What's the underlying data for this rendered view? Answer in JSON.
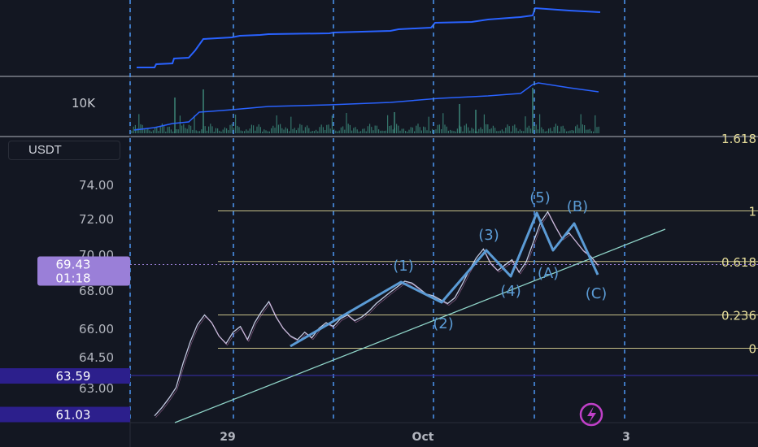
{
  "unit_label": "USDT",
  "volume_label": "10K",
  "price_tag": {
    "price": "69.43",
    "countdown": "01:18",
    "color": "#9a7fd8"
  },
  "level_tags": [
    {
      "price": "63.59",
      "color": "#2c1f8c"
    },
    {
      "price": "61.03",
      "color": "#2c1f8c"
    }
  ],
  "chart_data": {
    "type": "line",
    "title": "",
    "ylim": [
      60.4,
      75.2
    ],
    "y_ticks": [
      "74.00",
      "72.00",
      "70.00",
      "68.00",
      "66.00",
      "64.50",
      "63.00",
      "61.00"
    ],
    "x_ticks": [
      "29",
      "Oct",
      "3"
    ],
    "fib_levels": [
      {
        "label": "1.618",
        "value": 76.1
      },
      {
        "label": "1",
        "value": 72.45
      },
      {
        "label": "0.618",
        "value": 69.6
      },
      {
        "label": "0.236",
        "value": 66.7
      },
      {
        "label": "0",
        "value": 64.95
      }
    ],
    "wave_labels": [
      "(1)",
      "(2)",
      "(3)",
      "(4)",
      "(5)",
      "(A)",
      "(B)",
      "(C)"
    ],
    "price_series": {
      "name": "",
      "values": [
        60.9,
        61.5,
        62.2,
        63.0,
        64.2,
        65.3,
        66.2,
        66.7,
        66.3,
        65.6,
        65.2,
        65.8,
        66.1,
        65.4,
        66.3,
        66.9,
        67.4,
        66.6,
        66.0,
        65.6,
        65.4,
        65.8,
        65.5,
        66.0,
        66.3,
        66.1,
        66.5,
        66.7,
        66.4,
        66.6,
        66.9,
        67.3,
        67.6,
        67.9,
        68.2,
        68.5,
        68.4,
        68.1,
        67.8,
        67.7,
        67.5,
        67.3,
        67.6,
        68.3,
        69.1,
        69.8,
        70.3,
        69.5,
        69.1,
        69.4,
        69.7,
        69.0,
        69.6,
        70.7,
        71.8,
        72.4,
        71.6,
        70.9,
        71.2,
        70.7,
        70.2,
        69.9,
        69.4
      ]
    },
    "colors": {
      "price": "#d6dcf5",
      "wave": "#5b9bd5",
      "trendline": "#8fd4c8",
      "fib": "#e6dd9a",
      "indicator": "#2962ff"
    }
  }
}
